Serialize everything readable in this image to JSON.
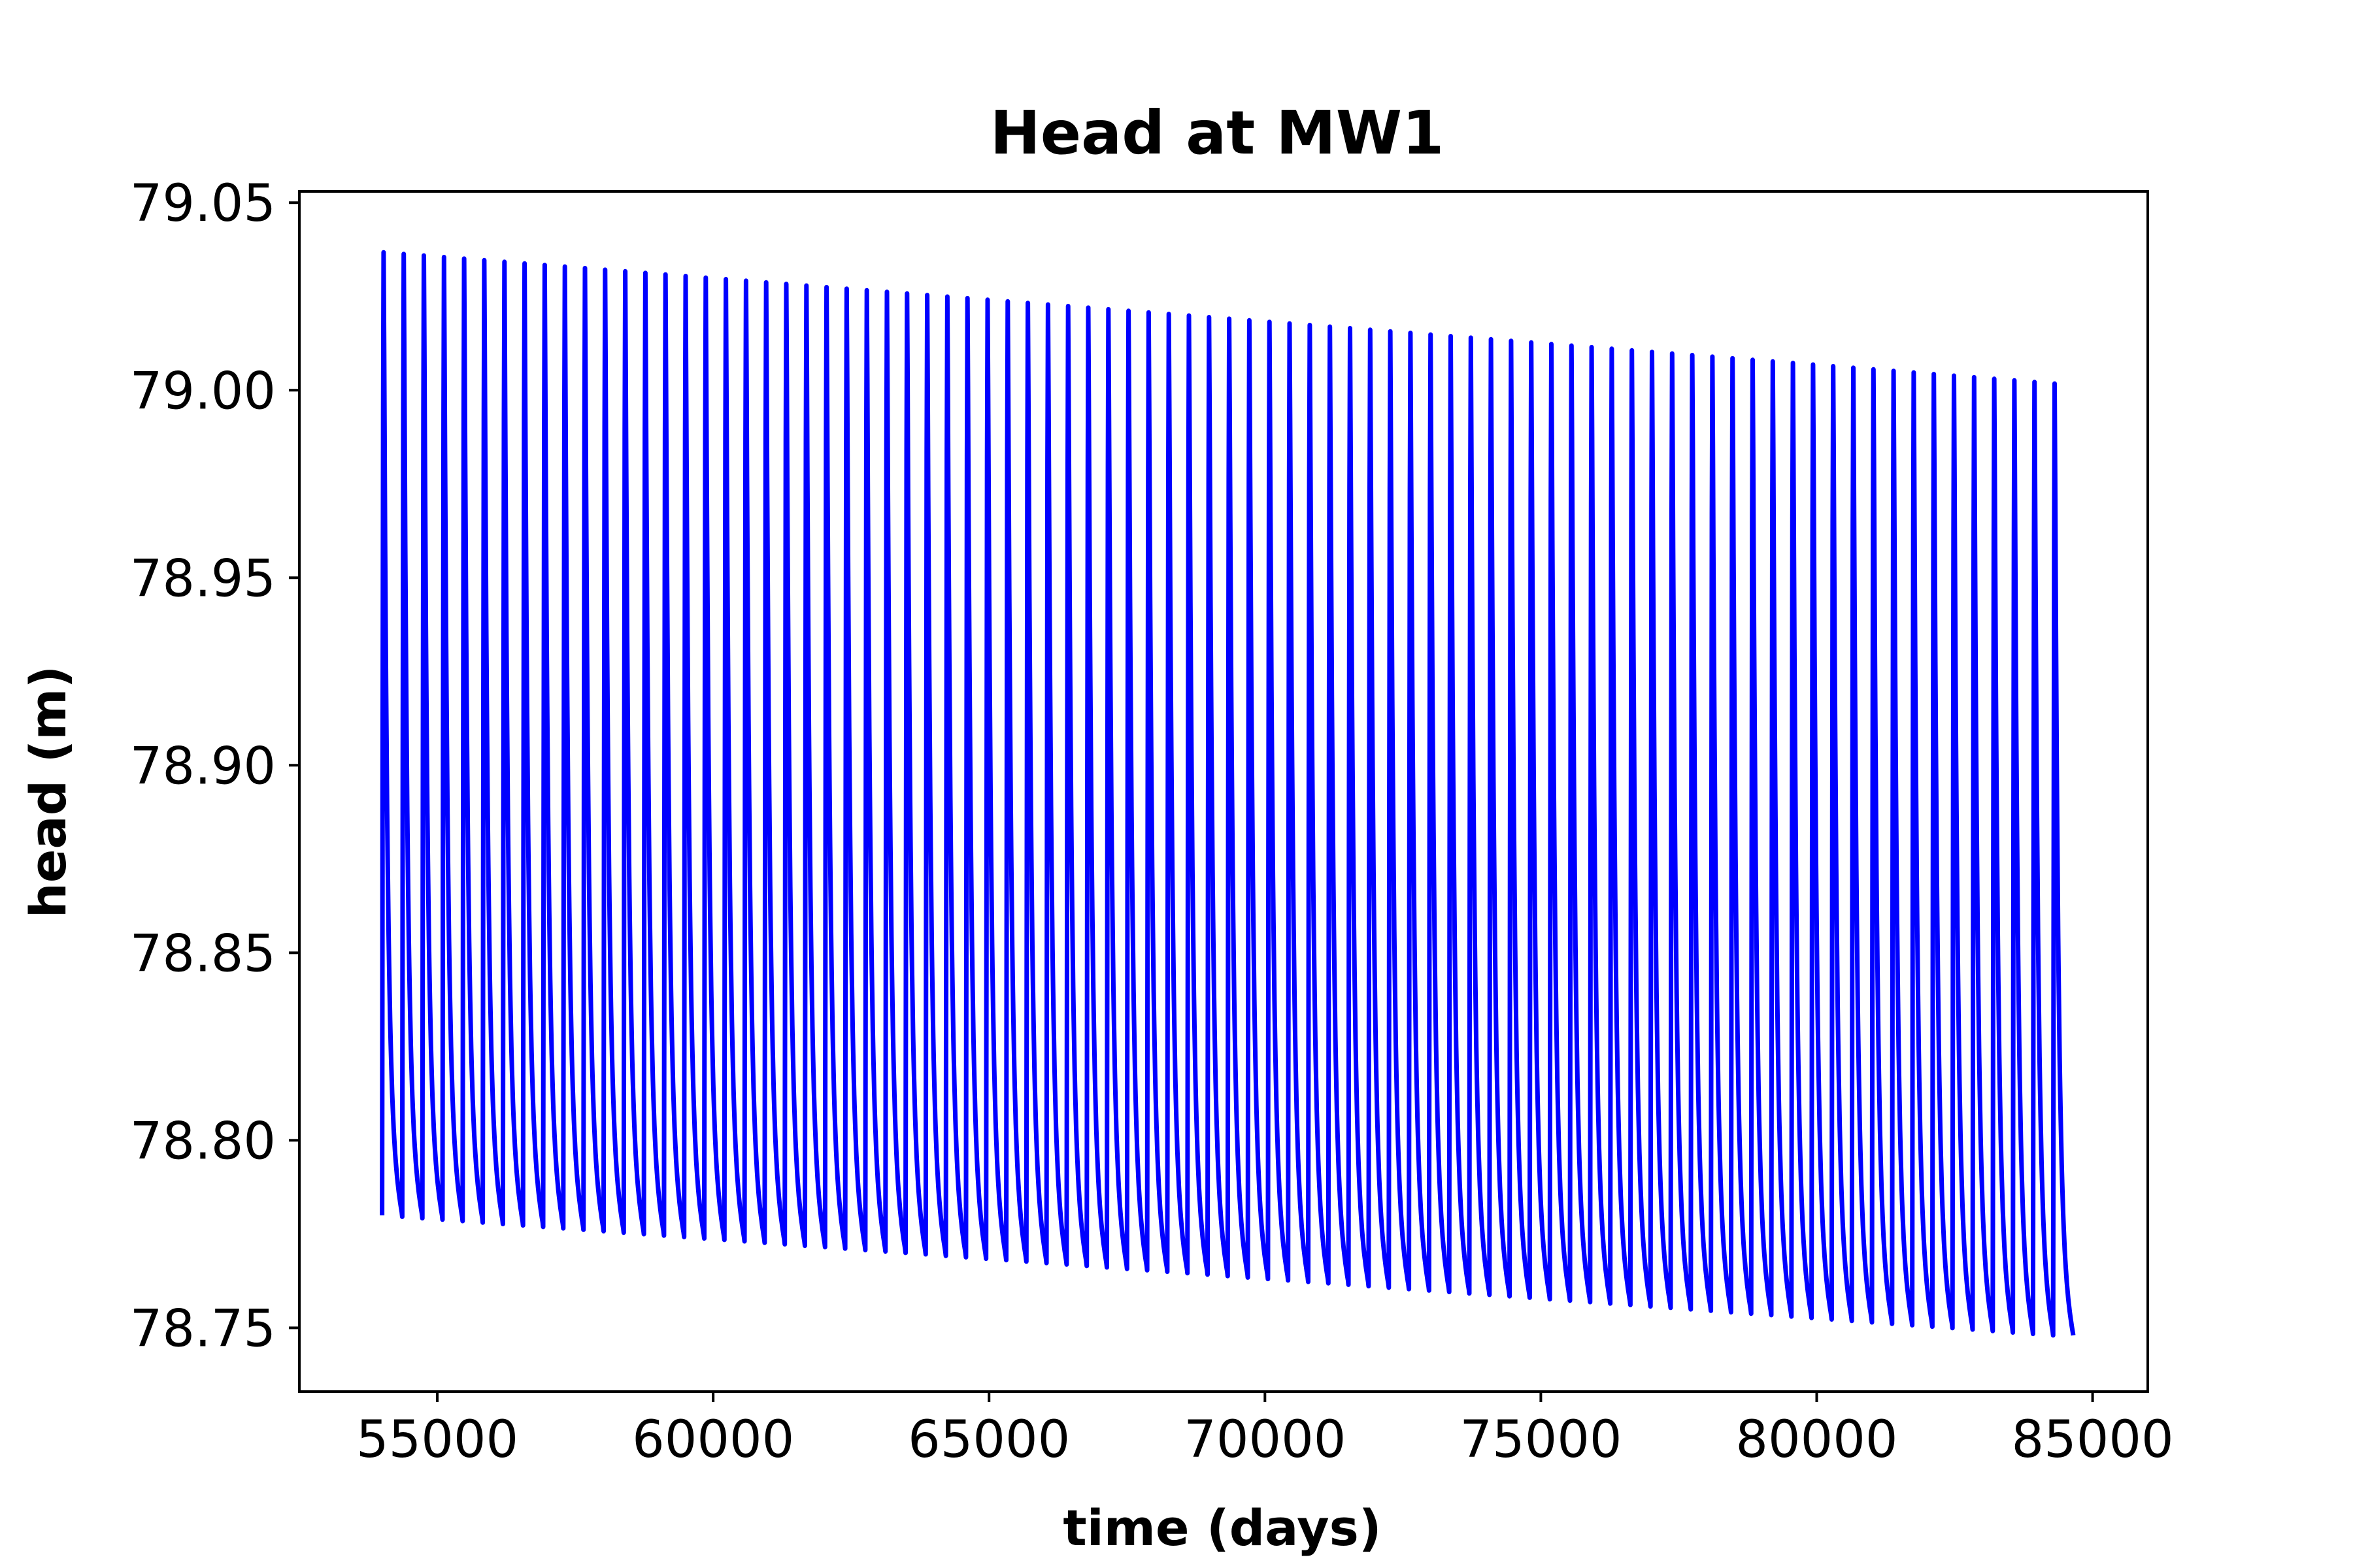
{
  "chart_data": {
    "type": "line",
    "title": "Head at MW1",
    "xlabel": "time (days)",
    "ylabel": "head (m)",
    "xlim": [
      52500,
      86000
    ],
    "ylim": [
      78.733,
      79.053
    ],
    "xticks": [
      55000,
      60000,
      65000,
      70000,
      75000,
      80000,
      85000
    ],
    "xtick_labels": [
      "55000",
      "60000",
      "65000",
      "70000",
      "75000",
      "80000",
      "85000"
    ],
    "yticks": [
      78.75,
      78.8,
      78.85,
      78.9,
      78.95,
      79.0,
      79.05
    ],
    "ytick_labels": [
      "78.75",
      "78.80",
      "78.85",
      "78.90",
      "78.95",
      "79.00",
      "79.05"
    ],
    "grid": false,
    "series": [
      {
        "name": "MW1 head",
        "color": "#0000ff",
        "pattern": "periodic sawtooth: rapid rise then gradual recession each cycle",
        "t_start": 54000,
        "t_end": 84650,
        "period_days": 365.25,
        "cycles": 84,
        "peak_head_start": 79.038,
        "peak_head_end": 79.003,
        "trough_head_start": 78.78,
        "trough_head_end": 78.748
      }
    ]
  }
}
